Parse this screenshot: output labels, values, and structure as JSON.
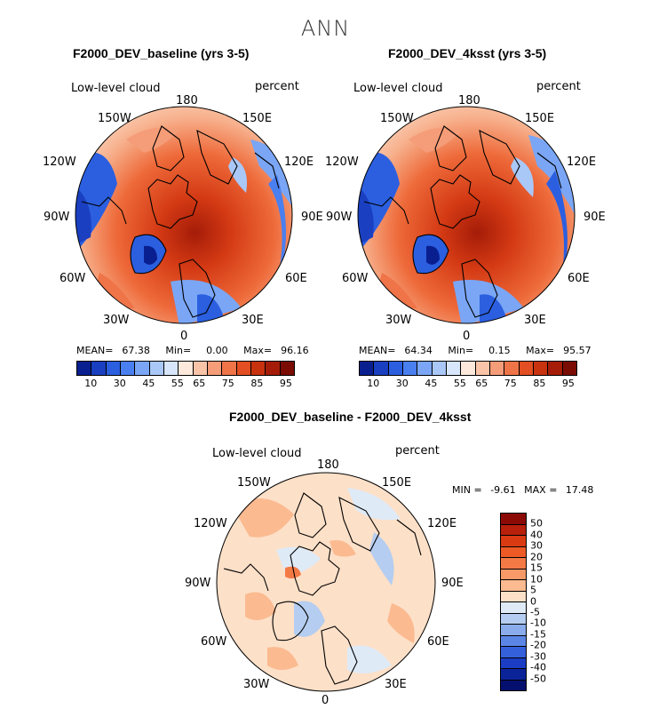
{
  "page_title": "ANN",
  "panels": [
    {
      "title": "F2000_DEV_baseline (yrs 3-5)",
      "variable": "Low-level cloud",
      "units": "percent",
      "stats": {
        "mean_label": "MEAN=",
        "mean": "67.38",
        "min_label": "Min=",
        "min": "0.00",
        "max_label": "Max=",
        "max": "96.16"
      }
    },
    {
      "title": "F2000_DEV_4ksst (yrs 3-5)",
      "variable": "Low-level cloud",
      "units": "percent",
      "stats": {
        "mean_label": "MEAN=",
        "mean": "64.34",
        "min_label": "Min=",
        "min": "0.15",
        "max_label": "Max=",
        "max": "95.57"
      }
    }
  ],
  "diff_panel": {
    "title": "F2000_DEV_baseline - F2000_DEV_4ksst",
    "variable": "Low-level cloud",
    "units": "percent",
    "min_label": "MIN =",
    "min": "-9.61",
    "max_label": "MAX =",
    "max": "17.48"
  },
  "longitude_labels": {
    "lon_180": "180",
    "lon_150w": "150W",
    "lon_150e": "150E",
    "lon_120w": "120W",
    "lon_120e": "120E",
    "lon_90w": "90W",
    "lon_90e": "90E",
    "lon_60w": "60W",
    "lon_60e": "60E",
    "lon_30w": "30W",
    "lon_30e": "30E",
    "lon_0": "0"
  },
  "chart_data": [
    {
      "type": "heatmap",
      "projection": "north-polar-stereographic",
      "title": "F2000_DEV_baseline (yrs 3-5)",
      "variable": "Low-level cloud",
      "units": "percent",
      "mean": 67.38,
      "min": 0.0,
      "max": 96.16,
      "colorbar_ticks": [
        "10",
        "30",
        "45",
        "55",
        "65",
        "75",
        "85",
        "95"
      ],
      "colorbar_colors": [
        "#0a1f8f",
        "#1a3fc0",
        "#2b5fe0",
        "#4a7ff0",
        "#7aa6f5",
        "#a9c8f8",
        "#d7e6fb",
        "#fde8dc",
        "#f9c4a8",
        "#f59c78",
        "#ef7448",
        "#e34e22",
        "#c8320e",
        "#a51c08",
        "#7a0c04"
      ]
    },
    {
      "type": "heatmap",
      "projection": "north-polar-stereographic",
      "title": "F2000_DEV_4ksst (yrs 3-5)",
      "variable": "Low-level cloud",
      "units": "percent",
      "mean": 64.34,
      "min": 0.15,
      "max": 95.57,
      "colorbar_ticks": [
        "10",
        "30",
        "45",
        "55",
        "65",
        "75",
        "85",
        "95"
      ],
      "colorbar_colors": [
        "#0a1f8f",
        "#1a3fc0",
        "#2b5fe0",
        "#4a7ff0",
        "#7aa6f5",
        "#a9c8f8",
        "#d7e6fb",
        "#fde8dc",
        "#f9c4a8",
        "#f59c78",
        "#ef7448",
        "#e34e22",
        "#c8320e",
        "#a51c08",
        "#7a0c04"
      ]
    },
    {
      "type": "heatmap",
      "projection": "north-polar-stereographic",
      "title": "F2000_DEV_baseline - F2000_DEV_4ksst",
      "variable": "Low-level cloud",
      "units": "percent",
      "min": -9.61,
      "max": 17.48,
      "colorbar_ticks": [
        "50",
        "40",
        "30",
        "20",
        "15",
        "10",
        "5",
        "0",
        "-5",
        "-10",
        "-15",
        "-20",
        "-30",
        "-40",
        "-50"
      ],
      "colorbar_colors": [
        "#8b0a05",
        "#b8200c",
        "#d93a12",
        "#ee5a26",
        "#f47a45",
        "#f89a68",
        "#fbba90",
        "#fde0c8",
        "#dfeaf7",
        "#b5cdf0",
        "#8aacec",
        "#5c86e6",
        "#3560dc",
        "#1a3dc4",
        "#0b2399",
        "#050f6e"
      ]
    }
  ]
}
